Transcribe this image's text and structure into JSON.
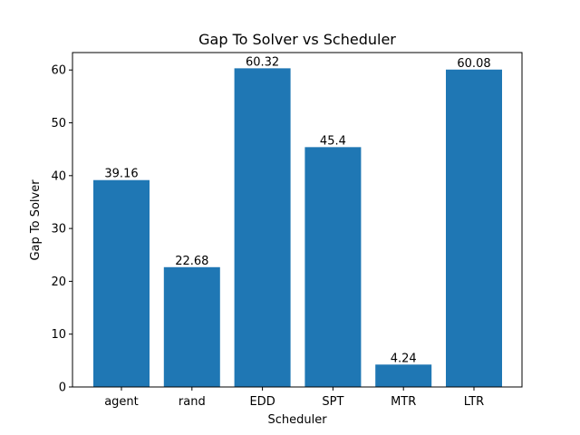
{
  "chart_data": {
    "type": "bar",
    "title": "Gap To Solver vs Scheduler",
    "xlabel": "Scheduler",
    "ylabel": "Gap To Solver",
    "categories": [
      "agent",
      "rand",
      "EDD",
      "SPT",
      "MTR",
      "LTR"
    ],
    "values": [
      39.16,
      22.68,
      60.32,
      45.4,
      4.24,
      60.08
    ],
    "data_labels": [
      "39.16",
      "22.68",
      "60.32",
      "45.4",
      "4.24",
      "60.08"
    ],
    "ylim": [
      0,
      63.3
    ],
    "yticks": [
      0,
      10,
      20,
      30,
      40,
      50,
      60
    ],
    "grid": false,
    "bar_color": "#1f77b4"
  }
}
